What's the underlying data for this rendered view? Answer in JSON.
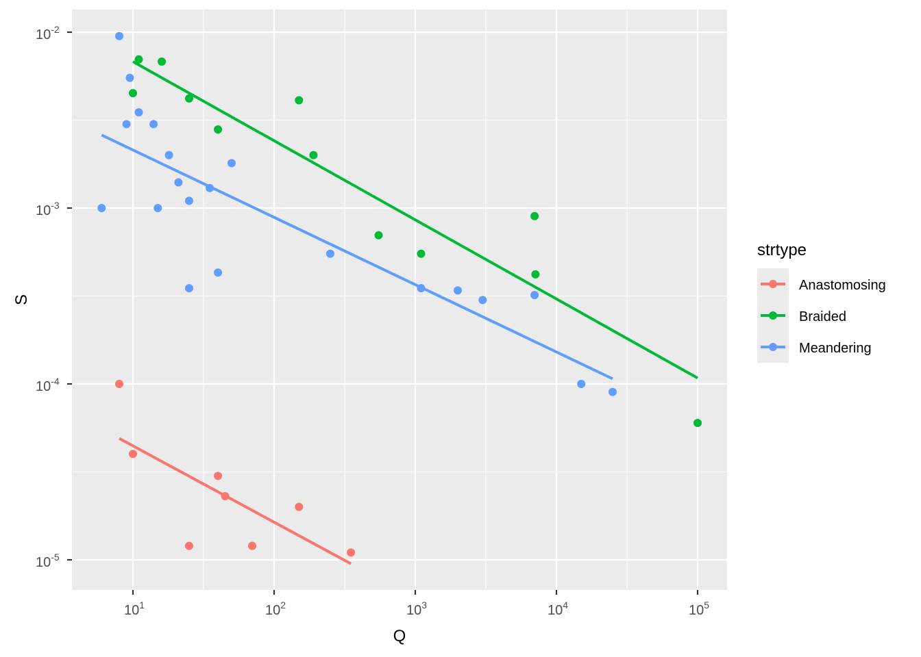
{
  "chart_data": {
    "type": "scatter",
    "title": "",
    "xlabel": "Q",
    "ylabel": "S",
    "x_scale": "log10",
    "y_scale": "log10",
    "xlim": [
      4.5,
      150000
    ],
    "ylim": [
      6.2e-06,
      0.0145
    ],
    "x_ticks": [
      10,
      100,
      1000,
      10000,
      100000
    ],
    "x_tick_labels": [
      {
        "base": "10",
        "exp": "1"
      },
      {
        "base": "10",
        "exp": "2"
      },
      {
        "base": "10",
        "exp": "3"
      },
      {
        "base": "10",
        "exp": "4"
      },
      {
        "base": "10",
        "exp": "5"
      }
    ],
    "y_ticks": [
      0.01,
      0.001,
      0.0001,
      1e-05
    ],
    "y_tick_labels": [
      {
        "base": "10",
        "exp": "-2"
      },
      {
        "base": "10",
        "exp": "-3"
      },
      {
        "base": "10",
        "exp": "-4"
      },
      {
        "base": "10",
        "exp": "-5"
      }
    ],
    "grid": true,
    "legend": {
      "title": "strtype",
      "position": "right"
    },
    "series": [
      {
        "name": "Anastomosing",
        "color": "#F8766D",
        "points": [
          {
            "x": 8,
            "y": 0.0001
          },
          {
            "x": 10,
            "y": 4e-05
          },
          {
            "x": 25,
            "y": 1.2e-05
          },
          {
            "x": 40,
            "y": 3e-05
          },
          {
            "x": 45,
            "y": 2.3e-05
          },
          {
            "x": 70,
            "y": 1.2e-05
          },
          {
            "x": 150,
            "y": 2e-05
          },
          {
            "x": 350,
            "y": 1.1e-05
          }
        ],
        "fit_line": [
          {
            "x": 8,
            "y": 4.9e-05
          },
          {
            "x": 350,
            "y": 9.5e-06
          }
        ]
      },
      {
        "name": "Braided",
        "color": "#00BA38",
        "points": [
          {
            "x": 10,
            "y": 0.0045
          },
          {
            "x": 11,
            "y": 0.007
          },
          {
            "x": 16,
            "y": 0.0068
          },
          {
            "x": 25,
            "y": 0.0042
          },
          {
            "x": 40,
            "y": 0.0028
          },
          {
            "x": 150,
            "y": 0.0041
          },
          {
            "x": 190,
            "y": 0.002
          },
          {
            "x": 550,
            "y": 0.0007
          },
          {
            "x": 1100,
            "y": 0.00055
          },
          {
            "x": 7000,
            "y": 0.0009
          },
          {
            "x": 7100,
            "y": 0.00042
          },
          {
            "x": 100000,
            "y": 6e-05
          }
        ],
        "fit_line": [
          {
            "x": 10,
            "y": 0.0068
          },
          {
            "x": 100000,
            "y": 0.000108
          }
        ]
      },
      {
        "name": "Meandering",
        "color": "#619CFF",
        "points": [
          {
            "x": 6,
            "y": 0.001
          },
          {
            "x": 8,
            "y": 0.0095
          },
          {
            "x": 9,
            "y": 0.003
          },
          {
            "x": 9.5,
            "y": 0.0055
          },
          {
            "x": 11,
            "y": 0.0035
          },
          {
            "x": 14,
            "y": 0.003
          },
          {
            "x": 15,
            "y": 0.001
          },
          {
            "x": 18,
            "y": 0.002
          },
          {
            "x": 21,
            "y": 0.0014
          },
          {
            "x": 25,
            "y": 0.0011
          },
          {
            "x": 25,
            "y": 0.00035
          },
          {
            "x": 35,
            "y": 0.0013
          },
          {
            "x": 40,
            "y": 0.00043
          },
          {
            "x": 50,
            "y": 0.0018
          },
          {
            "x": 250,
            "y": 0.00055
          },
          {
            "x": 1100,
            "y": 0.00035
          },
          {
            "x": 2000,
            "y": 0.00034
          },
          {
            "x": 3000,
            "y": 0.0003
          },
          {
            "x": 7000,
            "y": 0.00032
          },
          {
            "x": 15000,
            "y": 0.0001
          },
          {
            "x": 25000,
            "y": 9e-05
          }
        ],
        "fit_line": [
          {
            "x": 6,
            "y": 0.0026
          },
          {
            "x": 25000,
            "y": 0.000107
          }
        ]
      }
    ]
  },
  "colors": {
    "panel_bg": "#EBEBEB",
    "grid": "#FFFFFF",
    "tick_text": "#4D4D4D",
    "tick_mark": "#333333"
  }
}
